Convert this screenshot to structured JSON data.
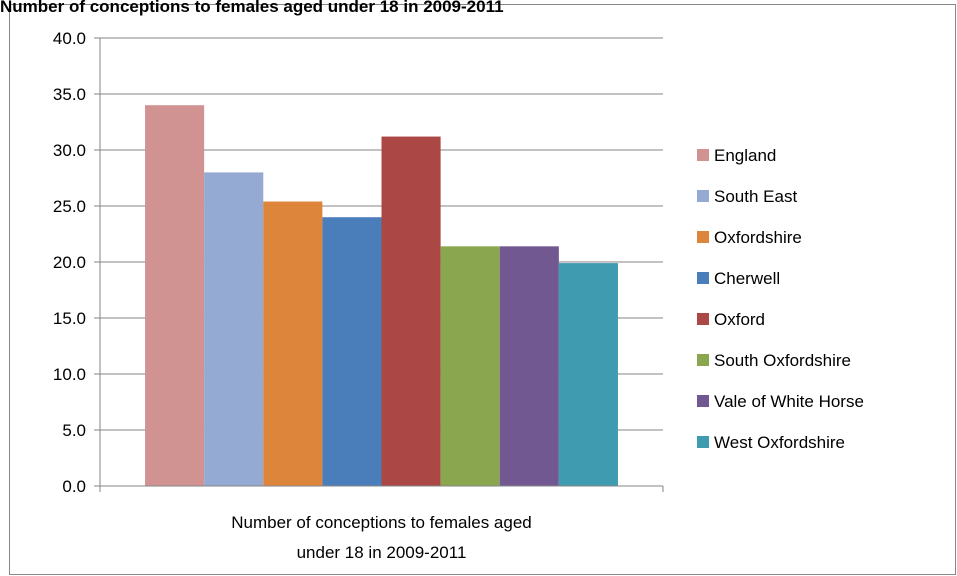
{
  "chart_data": {
    "type": "bar",
    "title": "Number of conceptions to females aged under 18 in 2009-2011",
    "categories": [
      "Number of conceptions to females aged under 18 in 2009-2011"
    ],
    "series": [
      {
        "name": "England",
        "color": "#d09392",
        "values": [
          34.0
        ]
      },
      {
        "name": "South East",
        "color": "#95aad3",
        "values": [
          28.0
        ]
      },
      {
        "name": "Oxfordshire",
        "color": "#de853c",
        "values": [
          25.4
        ]
      },
      {
        "name": "Cherwell",
        "color": "#4a7ebb",
        "values": [
          24.0
        ]
      },
      {
        "name": "Oxford",
        "color": "#ab4744",
        "values": [
          31.2
        ]
      },
      {
        "name": "South Oxfordshire",
        "color": "#8aa64e",
        "values": [
          21.4
        ]
      },
      {
        "name": "Vale of White Horse",
        "color": "#725891",
        "values": [
          21.4
        ]
      },
      {
        "name": "West Oxfordshire",
        "color": "#3f9bb0",
        "values": [
          19.9
        ]
      }
    ],
    "ylim": [
      0,
      40
    ],
    "yticks": [
      {
        "value": 0,
        "label": "0.0"
      },
      {
        "value": 5,
        "label": "5.0"
      },
      {
        "value": 10,
        "label": "10.0"
      },
      {
        "value": 15,
        "label": "15.0"
      },
      {
        "value": 20,
        "label": "20.0"
      },
      {
        "value": 25,
        "label": "25.0"
      },
      {
        "value": 30,
        "label": "30.0"
      },
      {
        "value": 35,
        "label": "35.0"
      },
      {
        "value": 40,
        "label": "40.0"
      }
    ],
    "grid": true,
    "legend": "right"
  }
}
